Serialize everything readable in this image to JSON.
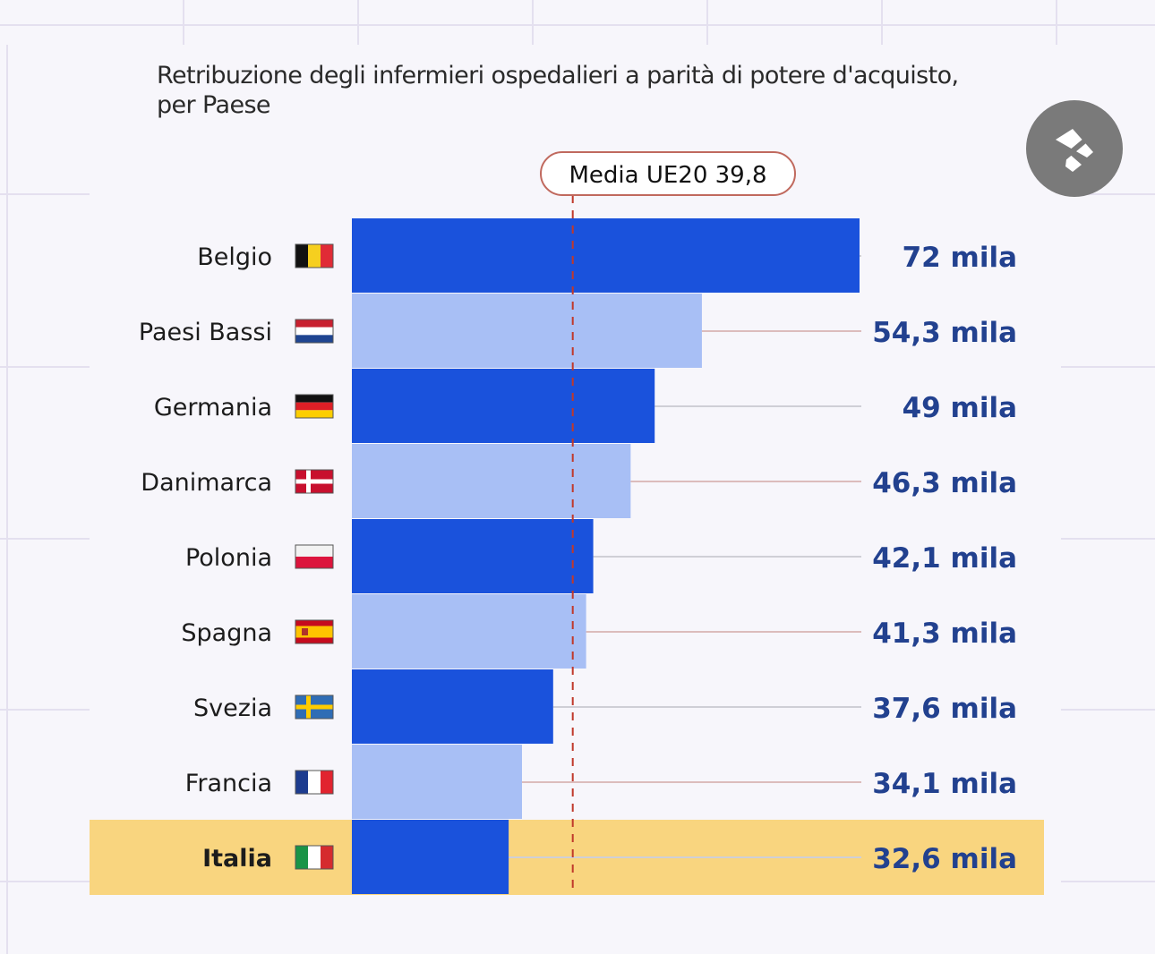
{
  "title_line1": "Retribuzione degli infermieri ospedalieri a parità di potere d'acquisto,",
  "title_line2": "per Paese",
  "chart_data": {
    "type": "bar",
    "orientation": "horizontal",
    "title": "Retribuzione degli infermieri ospedalieri a parità di potere d'acquisto, per Paese",
    "categories": [
      "Belgio",
      "Paesi Bassi",
      "Germania",
      "Danimarca",
      "Polonia",
      "Spagna",
      "Svezia",
      "Francia",
      "Italia"
    ],
    "values": [
      72,
      54.3,
      49,
      46.3,
      42.1,
      41.3,
      37.6,
      34.1,
      32.6
    ],
    "value_labels": [
      "72 mila",
      "54,3 mila",
      "49 mila",
      "46,3 mila",
      "42,1 mila",
      "41,3 mila",
      "37,6 mila",
      "34,1 mila",
      "32,6 mila"
    ],
    "flags": [
      "belgium",
      "netherlands",
      "germany",
      "denmark",
      "poland",
      "spain",
      "sweden",
      "france",
      "italy"
    ],
    "highlight": "Italia",
    "reference_line": {
      "label": "Media UE20 39,8",
      "value": 39.8
    },
    "colors": {
      "dark_bar": "#1a52dc",
      "light_bar": "#a8bff5",
      "highlight_row": "#f9d57f",
      "reference": "#c0392b",
      "value_text": "#22418f"
    },
    "xlim": [
      15,
      72
    ]
  }
}
